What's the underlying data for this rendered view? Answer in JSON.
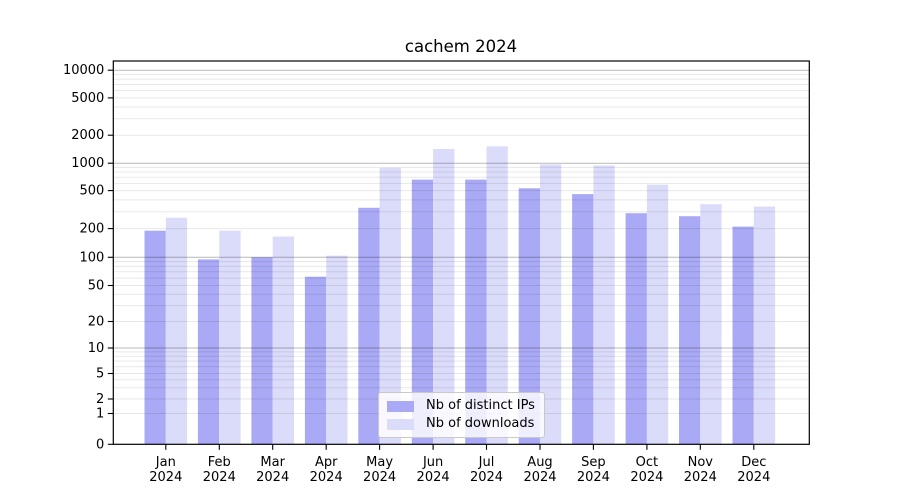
{
  "chart_data": {
    "type": "bar",
    "title": "cachem 2024",
    "months": [
      "Jan",
      "Feb",
      "Mar",
      "Apr",
      "May",
      "Jun",
      "Jul",
      "Aug",
      "Sep",
      "Oct",
      "Nov",
      "Dec"
    ],
    "year_label": "2024",
    "series": [
      {
        "name": "Nb of distinct IPs",
        "color": "#a9a9f5",
        "values": [
          190,
          95,
          100,
          62,
          330,
          660,
          660,
          530,
          460,
          290,
          270,
          210
        ]
      },
      {
        "name": "Nb of downloads",
        "color": "#dbdbfa",
        "values": [
          260,
          190,
          165,
          104,
          890,
          1420,
          1520,
          970,
          940,
          580,
          360,
          340
        ]
      }
    ],
    "yscale": "symlog",
    "ylim": [
      0,
      12600
    ],
    "y_tick_values": [
      0,
      1,
      2,
      5,
      10,
      20,
      50,
      100,
      200,
      500,
      1000,
      2000,
      5000,
      10000
    ],
    "y_tick_labels": [
      "0",
      "1",
      "2",
      "5",
      "10",
      "20",
      "50",
      "100",
      "200",
      "500",
      "1000",
      "2000",
      "5000",
      "10000"
    ],
    "grid": {
      "horizontal": true,
      "minor_lines": true
    },
    "legend_position": "lower center"
  },
  "colors": {
    "background": "#ffffff",
    "axis": "#000000",
    "grid_major": "rgba(0,0,0,0.28)",
    "grid_minor": "rgba(0,0,0,0.09)",
    "tick_label": "#000000",
    "legend_border": "#c9c9c9"
  }
}
